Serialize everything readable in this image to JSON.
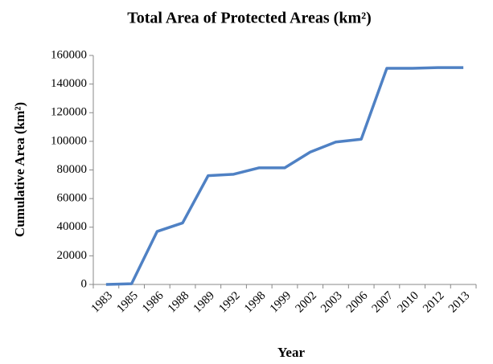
{
  "chart_data": {
    "type": "line",
    "title": "Total Area of Protected Areas (km²)",
    "x_label": "Year",
    "y_label": "Cumulative Area (km²)",
    "categories": [
      "1983",
      "1985",
      "1986",
      "1988",
      "1989",
      "1992",
      "1998",
      "1999",
      "2002",
      "2003",
      "2006",
      "2007",
      "2010",
      "2012",
      "2013"
    ],
    "values": [
      0,
      500,
      37000,
      43000,
      76000,
      77000,
      81500,
      81500,
      92500,
      99500,
      101500,
      151000,
      151000,
      151500,
      151500
    ],
    "color": "#4f81c4",
    "ylim": [
      0,
      160000
    ],
    "yticks": [
      0,
      20000,
      40000,
      60000,
      80000,
      100000,
      120000,
      140000,
      160000
    ],
    "grid": false
  }
}
